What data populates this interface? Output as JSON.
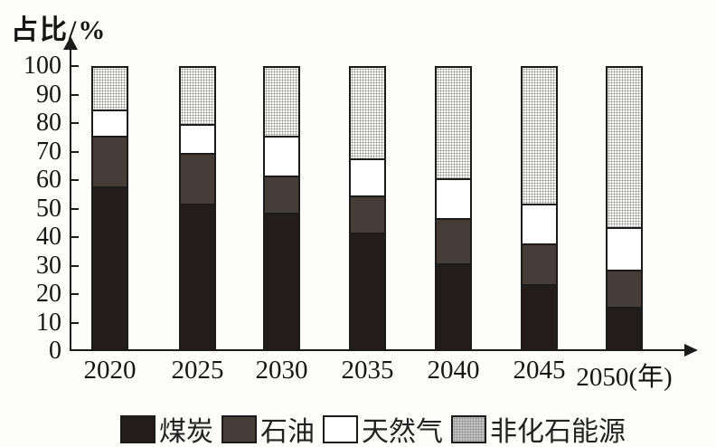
{
  "axis": {
    "ylabel": "占比/%",
    "x_suffix": "(年)",
    "yticks": [
      100,
      90,
      80,
      70,
      60,
      50,
      40,
      30,
      20,
      10,
      0
    ]
  },
  "colors": {
    "coal": "#221d1b",
    "oil": "#463d38",
    "gas": "#ffffff",
    "nonfossil": "#c2c2c2",
    "axis": "#1b1b1b"
  },
  "chart_data": {
    "type": "bar",
    "stacked": true,
    "title": "",
    "ylabel": "占比/%",
    "xlabel": "年",
    "ylim": [
      0,
      100
    ],
    "grid": false,
    "legend_position": "bottom",
    "categories": [
      "2020",
      "2025",
      "2030",
      "2035",
      "2040",
      "2045",
      "2050"
    ],
    "series": [
      {
        "name": "煤炭",
        "color": "#221d1b",
        "texture": "solid",
        "values": [
          57,
          51,
          48,
          41,
          30,
          23,
          15
        ]
      },
      {
        "name": "石油",
        "color": "#463d38",
        "texture": "solid",
        "values": [
          18,
          18,
          13,
          13,
          16,
          14,
          13
        ]
      },
      {
        "name": "天然气",
        "color": "#ffffff",
        "texture": "solid",
        "values": [
          9,
          10,
          14,
          13,
          14,
          14,
          15
        ]
      },
      {
        "name": "非化石能源",
        "color": "#c2c2c2",
        "texture": "dots",
        "values": [
          16,
          21,
          25,
          33,
          40,
          49,
          57
        ]
      }
    ]
  }
}
